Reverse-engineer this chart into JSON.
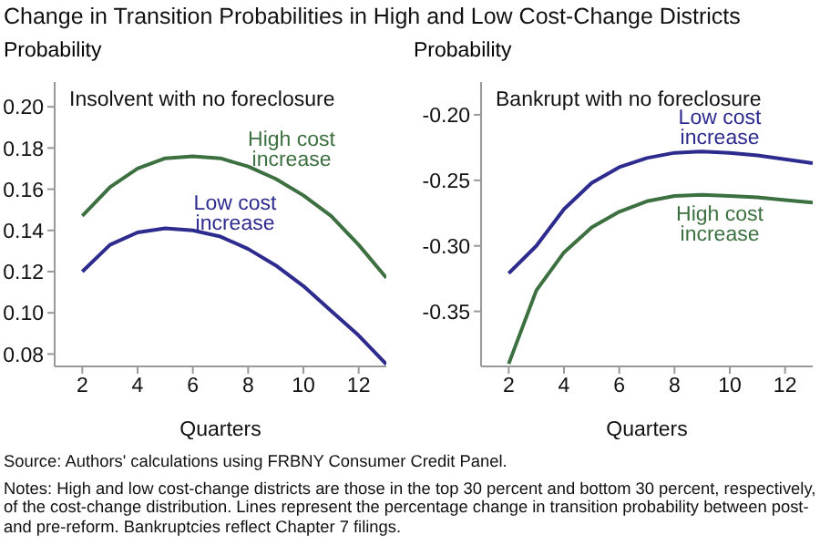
{
  "chart_data": [
    {
      "type": "line",
      "title": "Change in Transition Probabilities in High and Low Cost-Change Districts",
      "subtitle": "Insolvent with no foreclosure",
      "xlabel": "Quarters",
      "ylabel": "Probability",
      "x": [
        2,
        3,
        4,
        5,
        6,
        7,
        8,
        9,
        10,
        11,
        12,
        13
      ],
      "series": [
        {
          "name": "High cost increase",
          "color": "#3d7040",
          "values": [
            0.147,
            0.161,
            0.17,
            0.175,
            0.176,
            0.175,
            0.171,
            0.165,
            0.157,
            0.147,
            0.133,
            0.117
          ]
        },
        {
          "name": "Low cost increase",
          "color": "#2e2b8f",
          "values": [
            0.12,
            0.133,
            0.139,
            0.141,
            0.14,
            0.137,
            0.131,
            0.123,
            0.113,
            0.101,
            0.089,
            0.075
          ]
        }
      ],
      "xlim": [
        1,
        13
      ],
      "xticks": [
        2,
        4,
        6,
        8,
        10,
        12
      ],
      "ylim": [
        0.074,
        0.212
      ],
      "yticks": [
        {
          "value": 0.08,
          "label": "0.08"
        },
        {
          "value": 0.1,
          "label": "0.10"
        },
        {
          "value": 0.12,
          "label": "0.12"
        },
        {
          "value": 0.14,
          "label": "0.14"
        },
        {
          "value": 0.16,
          "label": "0.16"
        },
        {
          "value": 0.18,
          "label": "0.18"
        },
        {
          "value": 0.2,
          "label": "0.20"
        }
      ],
      "grid": false,
      "marker": "none",
      "line_style": "solid"
    },
    {
      "type": "line",
      "subtitle": "Bankrupt with no foreclosure",
      "xlabel": "Quarters",
      "ylabel": "Probability",
      "x": [
        2,
        3,
        4,
        5,
        6,
        7,
        8,
        9,
        10,
        11,
        12,
        13
      ],
      "series": [
        {
          "name": "Low cost increase",
          "color": "#2e2b8f",
          "values": [
            -0.321,
            -0.3,
            -0.272,
            -0.252,
            -0.24,
            -0.233,
            -0.229,
            -0.228,
            -0.229,
            -0.231,
            -0.234,
            -0.237
          ]
        },
        {
          "name": "High cost increase",
          "color": "#3d7040",
          "values": [
            -0.39,
            -0.334,
            -0.305,
            -0.286,
            -0.274,
            -0.266,
            -0.262,
            -0.261,
            -0.262,
            -0.263,
            -0.265,
            -0.267
          ]
        }
      ],
      "xlim": [
        1,
        13
      ],
      "xticks": [
        2,
        4,
        6,
        8,
        10,
        12
      ],
      "ylim": [
        -0.392,
        -0.175
      ],
      "yticks": [
        {
          "value": -0.35,
          "label": "-0.35"
        },
        {
          "value": -0.3,
          "label": "-0.30"
        },
        {
          "value": -0.25,
          "label": "-0.25"
        },
        {
          "value": -0.2,
          "label": "-0.20"
        }
      ],
      "grid": false,
      "marker": "none",
      "line_style": "solid",
      "annotations": [
        "Source: Authors' calculations using FRBNY Consumer Credit Panel.",
        "Notes: High and low cost-change districts are those in the top 30 percent and bottom 30 percent, respectively, of the cost-change distribution. Lines represent the percentage change in transition probability between post- and pre-reform. Bankruptcies reflect Chapter 7 filings."
      ]
    }
  ]
}
